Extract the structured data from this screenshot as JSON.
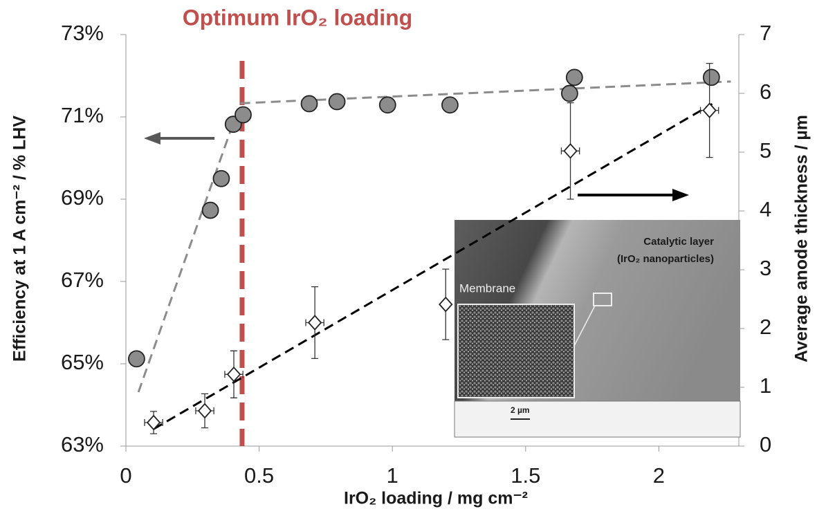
{
  "chart_data": {
    "type": "scatter",
    "title": "Optimum IrO₂ loading",
    "xlabel": "IrO₂ loading / mg cm⁻²",
    "ylabel": "Efficiency at 1 A cm⁻² / % LHV",
    "y2label": "Average anode thickness / µm",
    "xlim": [
      0,
      2.3
    ],
    "xticks": [
      0,
      0.5,
      1,
      1.5,
      2
    ],
    "ylim": [
      63,
      73
    ],
    "yticks": [
      {
        "value": 63,
        "label": "63%"
      },
      {
        "value": 65,
        "label": "65%"
      },
      {
        "value": 67,
        "label": "67%"
      },
      {
        "value": 69,
        "label": "69%"
      },
      {
        "value": 71,
        "label": "71%"
      },
      {
        "value": 73,
        "label": "73%"
      }
    ],
    "y2lim": [
      0,
      7
    ],
    "y2ticks": [
      0,
      1,
      2,
      3,
      4,
      5,
      6,
      7
    ],
    "series": [
      {
        "marker": "circle",
        "color": "#8c8c8c",
        "axis": "y",
        "x": [
          0.04,
          0.317,
          0.358,
          0.403,
          0.44,
          0.688,
          0.792,
          0.982,
          1.216,
          1.665,
          1.683,
          2.197
        ],
        "values": [
          65.12,
          68.73,
          69.5,
          70.82,
          71.05,
          71.32,
          71.37,
          71.29,
          71.29,
          71.57,
          71.96,
          71.96
        ]
      },
      {
        "marker": "diamond",
        "color": "#ffffff",
        "axis": "y2",
        "x": [
          0.104,
          0.296,
          0.405,
          0.709,
          1.2,
          1.668,
          2.19
        ],
        "values": [
          0.4,
          0.6,
          1.22,
          2.1,
          2.41,
          5.02,
          5.71
        ],
        "yerr": [
          0.19,
          0.29,
          0.4,
          0.61,
          0.6,
          0.82,
          0.8
        ],
        "xerr": [
          0.034,
          0.034,
          0.034,
          0.034,
          0.0,
          0.034,
          0.034
        ]
      }
    ],
    "trend_lines": [
      {
        "color": "#8c8c8c",
        "axis": "y",
        "x": [
          0.047,
          0.4
        ],
        "values": [
          64.31,
          70.8
        ]
      },
      {
        "color": "#8c8c8c",
        "axis": "y",
        "x": [
          0.43,
          2.27
        ],
        "values": [
          71.33,
          71.86
        ]
      },
      {
        "color": "#000000",
        "axis": "y2",
        "x": [
          0.104,
          2.2
        ],
        "values": [
          0.29,
          5.82
        ]
      }
    ],
    "vline": {
      "x": 0.436,
      "color": "#c0504d"
    },
    "inset_labels": [
      "Catalytic layer",
      "(IrO₂ nanoparticles)",
      "Membrane",
      "2 µm"
    ]
  }
}
